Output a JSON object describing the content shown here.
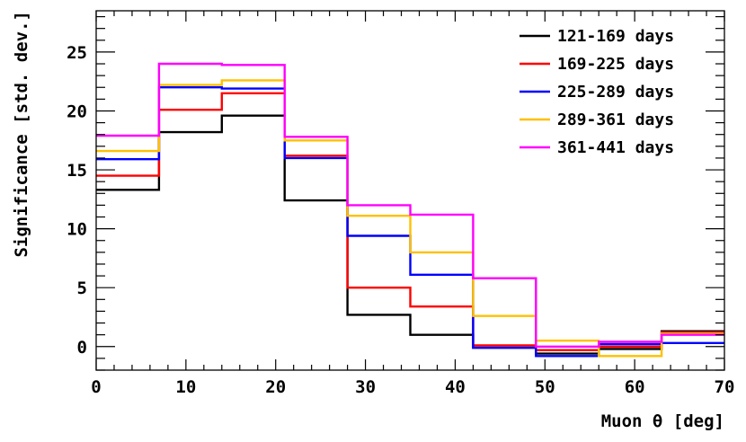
{
  "chart_data": {
    "type": "line",
    "subtype": "step-histogram",
    "xlabel": "Muon θ [deg]",
    "ylabel": "Significance [std. dev.]",
    "xlim": [
      0,
      70
    ],
    "ylim": [
      -2,
      28.5
    ],
    "x_ticks": [
      0,
      10,
      20,
      30,
      40,
      50,
      60,
      70
    ],
    "y_ticks": [
      0,
      5,
      10,
      15,
      20,
      25
    ],
    "bin_edges": [
      0,
      7,
      14,
      21,
      28,
      35,
      42,
      49,
      56,
      63,
      70
    ],
    "grid": false,
    "legend_position": "top-right",
    "series": [
      {
        "name": "121-169 days",
        "color": "#000000",
        "values": [
          13.3,
          18.2,
          19.6,
          12.4,
          2.7,
          1.0,
          -0.1,
          -0.6,
          -0.2,
          1.3
        ]
      },
      {
        "name": "169-225 days",
        "color": "#ff0000",
        "values": [
          14.5,
          20.1,
          21.5,
          16.2,
          5.0,
          3.4,
          0.1,
          -0.3,
          0.0,
          1.2
        ]
      },
      {
        "name": "225-289 days",
        "color": "#0000ff",
        "values": [
          15.9,
          22.0,
          21.9,
          16.0,
          9.4,
          6.1,
          -0.1,
          -0.8,
          0.2,
          0.3
        ]
      },
      {
        "name": "289-361 days",
        "color": "#ffc000",
        "values": [
          16.6,
          22.2,
          22.6,
          17.5,
          11.1,
          8.0,
          2.6,
          0.5,
          -0.8,
          1.1
        ]
      },
      {
        "name": "361-441 days",
        "color": "#ff00ff",
        "values": [
          17.9,
          24.0,
          23.9,
          17.8,
          12.0,
          11.2,
          5.8,
          0.0,
          0.4,
          1.0
        ]
      }
    ]
  }
}
